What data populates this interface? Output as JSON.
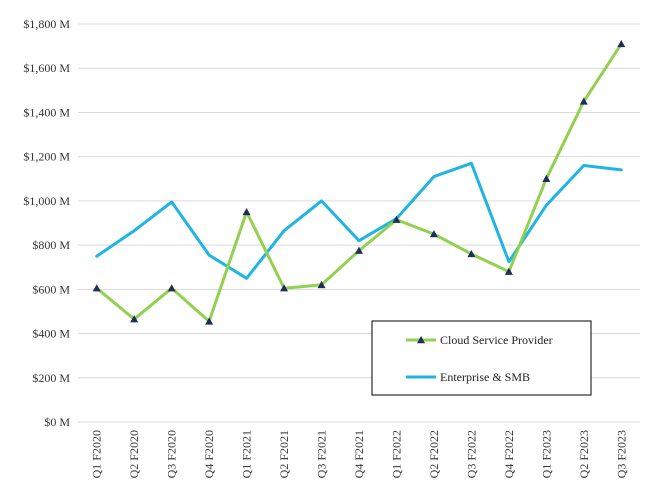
{
  "chart_data": {
    "type": "line",
    "categories": [
      "Q1 F2020",
      "Q2 F2020",
      "Q3 F2020",
      "Q4 F2020",
      "Q1 F2021",
      "Q2 F2021",
      "Q3 F2021",
      "Q4 F2021",
      "Q1 F2022",
      "Q2 F2022",
      "Q3 F2022",
      "Q4 F2022",
      "Q1 F2023",
      "Q2 F2023",
      "Q3 F2023"
    ],
    "ylim": [
      0,
      1800
    ],
    "yticks": [
      0,
      200,
      400,
      600,
      800,
      1000,
      1200,
      1400,
      1600,
      1800
    ],
    "ytick_labels": [
      "$0 M",
      "$200 M",
      "$400 M",
      "$600 M",
      "$800 M",
      "$1,000 M",
      "$1,200 M",
      "$1,400 M",
      "$1,600 M",
      "$1,800 M"
    ],
    "grid": true,
    "legend_position": "lower-right",
    "series": [
      {
        "name": "Cloud Service Provider",
        "color": "#92d050",
        "marker": "triangle",
        "marker_color": "#1f2d5a",
        "values": [
          605,
          465,
          605,
          455,
          950,
          605,
          620,
          775,
          915,
          850,
          760,
          680,
          1100,
          1450,
          1710
        ]
      },
      {
        "name": "Enterprise & SMB",
        "color": "#1fb4e3",
        "marker": "none",
        "values": [
          750,
          865,
          995,
          755,
          650,
          865,
          1000,
          820,
          920,
          1110,
          1170,
          725,
          980,
          1160,
          1140
        ]
      }
    ]
  }
}
